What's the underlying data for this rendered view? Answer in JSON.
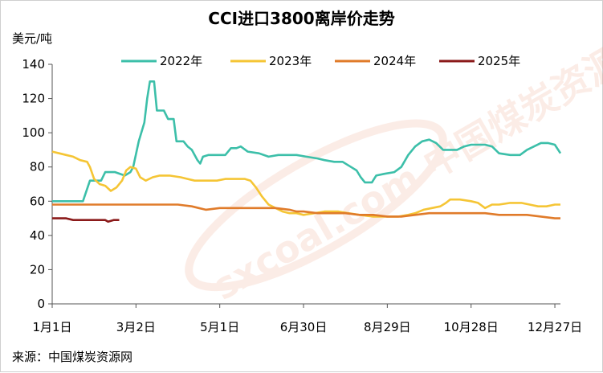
{
  "chart_data": {
    "type": "line",
    "title": "CCI进口3800离岸价走势",
    "ylabel": "美元/吨",
    "source": "来源：中国煤炭资源网",
    "watermark": "sxcoal.com 中国煤炭资源网",
    "ylim": [
      0,
      140
    ],
    "yticks": [
      0,
      20,
      40,
      60,
      80,
      100,
      120,
      140
    ],
    "xticks": [
      {
        "label": "1月1日",
        "day": 0
      },
      {
        "label": "3月2日",
        "day": 60
      },
      {
        "label": "5月1日",
        "day": 120
      },
      {
        "label": "6月30日",
        "day": 180
      },
      {
        "label": "8月29日",
        "day": 240
      },
      {
        "label": "10月28日",
        "day": 300
      },
      {
        "label": "12月27日",
        "day": 360
      }
    ],
    "xlim": [
      0,
      364
    ],
    "grid": false,
    "legend_position": "top",
    "series": [
      {
        "name": "2022年",
        "color": "#3cbfa9",
        "points": [
          [
            0,
            60
          ],
          [
            22,
            60
          ],
          [
            27,
            72
          ],
          [
            35,
            72
          ],
          [
            38,
            77
          ],
          [
            45,
            77
          ],
          [
            52,
            75
          ],
          [
            56,
            77
          ],
          [
            58,
            80
          ],
          [
            62,
            95
          ],
          [
            66,
            106
          ],
          [
            68,
            120
          ],
          [
            70,
            130
          ],
          [
            73,
            130
          ],
          [
            75,
            113
          ],
          [
            80,
            113
          ],
          [
            83,
            108
          ],
          [
            87,
            108
          ],
          [
            89,
            95
          ],
          [
            94,
            95
          ],
          [
            97,
            92
          ],
          [
            100,
            90
          ],
          [
            104,
            84
          ],
          [
            106,
            82
          ],
          [
            108,
            86
          ],
          [
            112,
            87
          ],
          [
            118,
            87
          ],
          [
            124,
            87
          ],
          [
            128,
            91
          ],
          [
            132,
            91
          ],
          [
            135,
            92
          ],
          [
            140,
            89
          ],
          [
            148,
            88
          ],
          [
            155,
            86
          ],
          [
            162,
            87
          ],
          [
            168,
            87
          ],
          [
            175,
            87
          ],
          [
            182,
            86
          ],
          [
            190,
            85
          ],
          [
            195,
            84
          ],
          [
            202,
            83
          ],
          [
            208,
            83
          ],
          [
            214,
            80
          ],
          [
            218,
            78
          ],
          [
            221,
            74
          ],
          [
            224,
            71
          ],
          [
            229,
            71
          ],
          [
            232,
            75
          ],
          [
            238,
            76
          ],
          [
            245,
            77
          ],
          [
            250,
            80
          ],
          [
            255,
            87
          ],
          [
            260,
            92
          ],
          [
            265,
            95
          ],
          [
            270,
            96
          ],
          [
            275,
            94
          ],
          [
            280,
            90
          ],
          [
            285,
            90
          ],
          [
            290,
            90
          ],
          [
            295,
            92
          ],
          [
            300,
            93
          ],
          [
            305,
            93
          ],
          [
            310,
            93
          ],
          [
            315,
            92
          ],
          [
            320,
            88
          ],
          [
            328,
            87
          ],
          [
            335,
            87
          ],
          [
            340,
            90
          ],
          [
            345,
            92
          ],
          [
            350,
            94
          ],
          [
            355,
            94
          ],
          [
            360,
            93
          ],
          [
            364,
            88
          ]
        ]
      },
      {
        "name": "2023年",
        "color": "#f5c535",
        "points": [
          [
            0,
            89
          ],
          [
            5,
            88
          ],
          [
            10,
            87
          ],
          [
            15,
            86
          ],
          [
            20,
            84
          ],
          [
            25,
            83
          ],
          [
            27,
            80
          ],
          [
            30,
            73
          ],
          [
            34,
            70
          ],
          [
            38,
            69
          ],
          [
            42,
            66
          ],
          [
            46,
            68
          ],
          [
            50,
            72
          ],
          [
            53,
            78
          ],
          [
            56,
            80
          ],
          [
            60,
            79
          ],
          [
            63,
            74
          ],
          [
            67,
            72
          ],
          [
            72,
            74
          ],
          [
            77,
            75
          ],
          [
            84,
            75
          ],
          [
            92,
            74
          ],
          [
            97,
            73
          ],
          [
            102,
            72
          ],
          [
            110,
            72
          ],
          [
            118,
            72
          ],
          [
            124,
            73
          ],
          [
            132,
            73
          ],
          [
            138,
            73
          ],
          [
            142,
            72
          ],
          [
            146,
            68
          ],
          [
            150,
            63
          ],
          [
            155,
            58
          ],
          [
            160,
            56
          ],
          [
            165,
            54
          ],
          [
            170,
            53
          ],
          [
            175,
            53
          ],
          [
            180,
            52
          ],
          [
            188,
            53
          ],
          [
            195,
            54
          ],
          [
            205,
            54
          ],
          [
            212,
            53
          ],
          [
            220,
            52
          ],
          [
            230,
            51
          ],
          [
            240,
            51
          ],
          [
            248,
            51
          ],
          [
            255,
            52
          ],
          [
            260,
            53
          ],
          [
            266,
            55
          ],
          [
            272,
            56
          ],
          [
            278,
            57
          ],
          [
            282,
            59
          ],
          [
            285,
            61
          ],
          [
            292,
            61
          ],
          [
            300,
            60
          ],
          [
            305,
            59
          ],
          [
            310,
            56
          ],
          [
            315,
            58
          ],
          [
            320,
            58
          ],
          [
            328,
            59
          ],
          [
            336,
            59
          ],
          [
            342,
            58
          ],
          [
            348,
            57
          ],
          [
            354,
            57
          ],
          [
            360,
            58
          ],
          [
            364,
            58
          ]
        ]
      },
      {
        "name": "2024年",
        "color": "#e07b2a",
        "points": [
          [
            0,
            58
          ],
          [
            10,
            58
          ],
          [
            20,
            58
          ],
          [
            30,
            58
          ],
          [
            40,
            58
          ],
          [
            50,
            58
          ],
          [
            60,
            58
          ],
          [
            70,
            58
          ],
          [
            80,
            58
          ],
          [
            90,
            58
          ],
          [
            100,
            57
          ],
          [
            105,
            56
          ],
          [
            110,
            55
          ],
          [
            120,
            56
          ],
          [
            130,
            56
          ],
          [
            140,
            56
          ],
          [
            150,
            56
          ],
          [
            160,
            56
          ],
          [
            170,
            55
          ],
          [
            175,
            54
          ],
          [
            180,
            54
          ],
          [
            190,
            53
          ],
          [
            200,
            53
          ],
          [
            210,
            53
          ],
          [
            220,
            52
          ],
          [
            230,
            52
          ],
          [
            240,
            51
          ],
          [
            250,
            51
          ],
          [
            260,
            52
          ],
          [
            270,
            53
          ],
          [
            280,
            53
          ],
          [
            290,
            53
          ],
          [
            300,
            53
          ],
          [
            310,
            53
          ],
          [
            320,
            52
          ],
          [
            330,
            52
          ],
          [
            340,
            52
          ],
          [
            350,
            51
          ],
          [
            360,
            50
          ],
          [
            364,
            50
          ]
        ]
      },
      {
        "name": "2025年",
        "color": "#8b1a1a",
        "points": [
          [
            0,
            50
          ],
          [
            5,
            50
          ],
          [
            10,
            50
          ],
          [
            15,
            49
          ],
          [
            20,
            49
          ],
          [
            25,
            49
          ],
          [
            30,
            49
          ],
          [
            35,
            49
          ],
          [
            38,
            49
          ],
          [
            40,
            48
          ],
          [
            44,
            49
          ],
          [
            48,
            49
          ]
        ]
      }
    ]
  }
}
